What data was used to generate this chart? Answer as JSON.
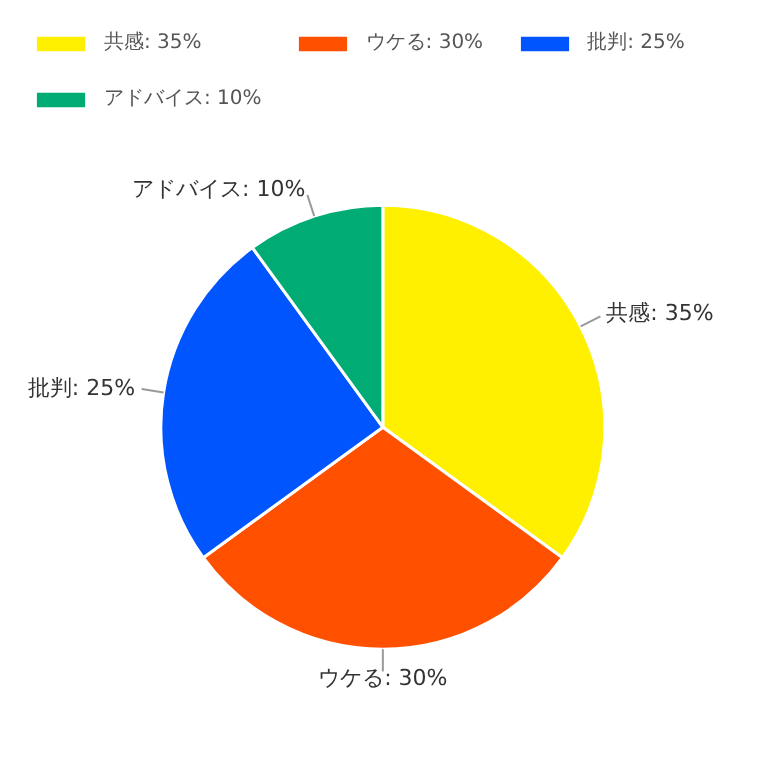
{
  "chart_data": {
    "type": "pie",
    "categories": [
      "共感: 35%",
      "ウケる: 30%",
      "批判: 25%",
      "アドバイス: 10%"
    ],
    "values": [
      35,
      30,
      25,
      10
    ],
    "colors": [
      "#fff000",
      "#ff5000",
      "#0055ff",
      "#00ac73"
    ],
    "legend": "top"
  }
}
